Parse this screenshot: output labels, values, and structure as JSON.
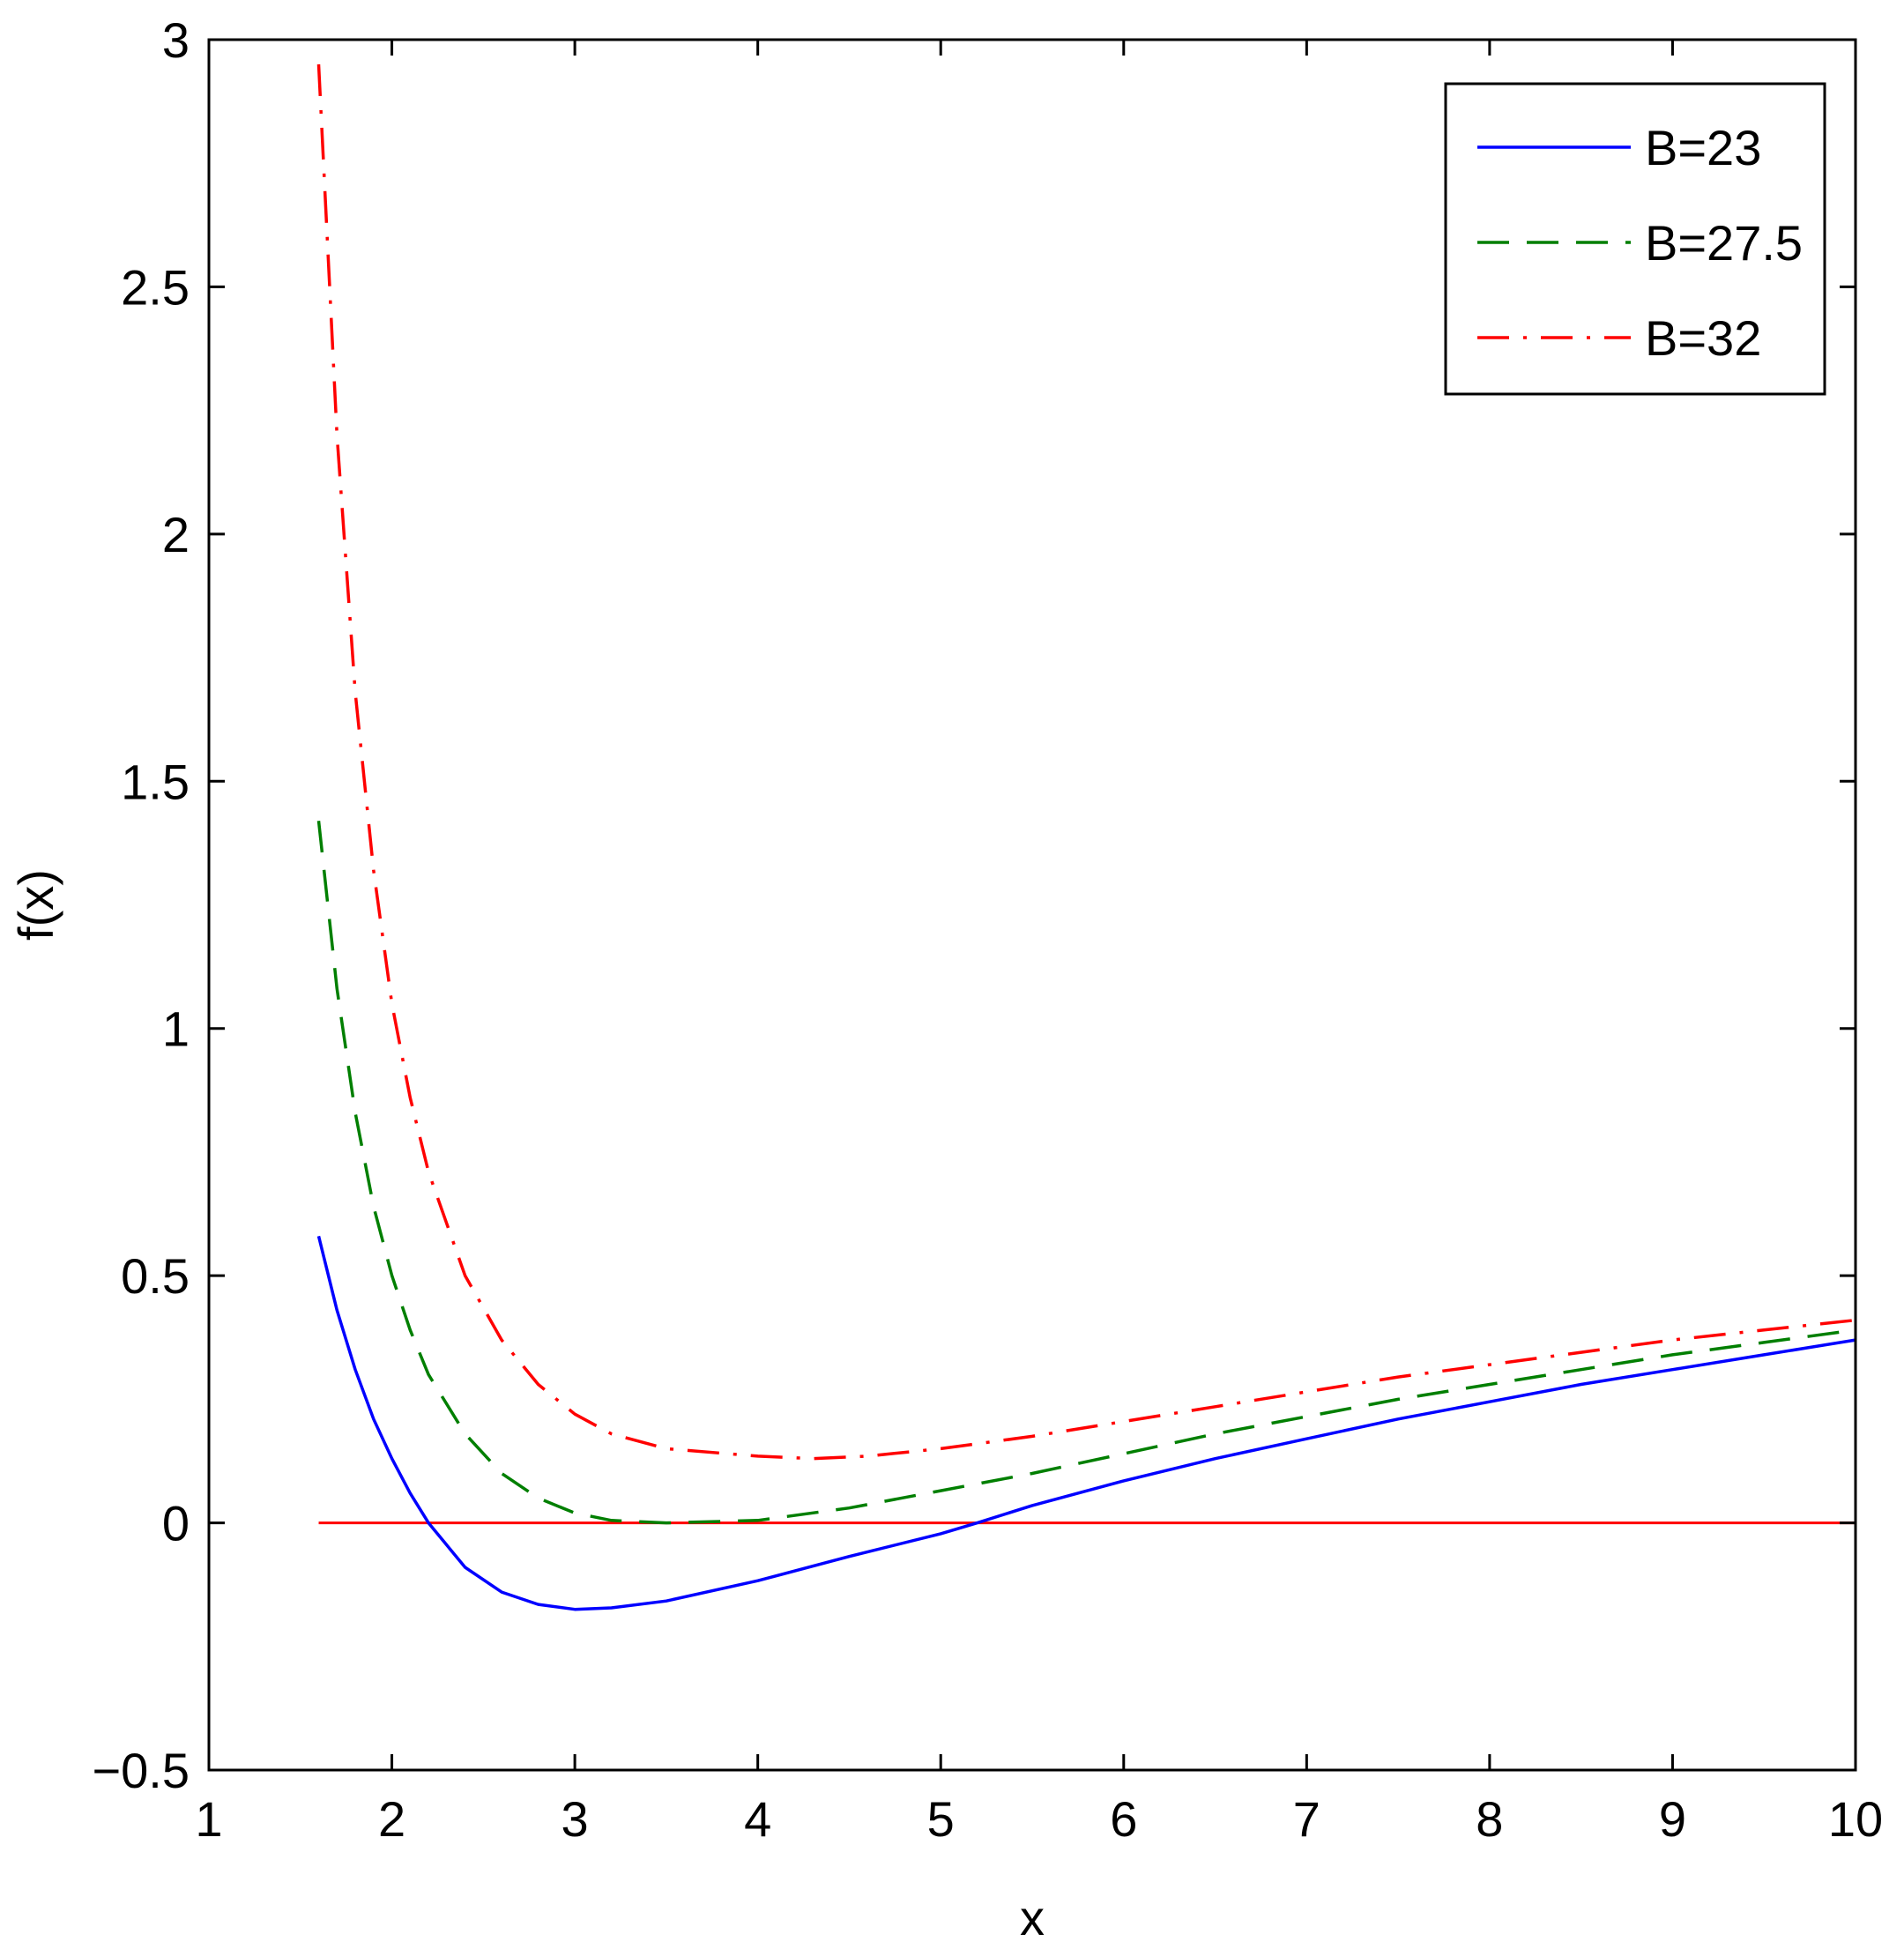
{
  "chart_data": {
    "type": "line",
    "xlabel": "x",
    "ylabel": "f(x)",
    "xlim": [
      1,
      10
    ],
    "ylim": [
      -0.5,
      3
    ],
    "xticks": [
      1,
      2,
      3,
      4,
      5,
      6,
      7,
      8,
      9,
      10
    ],
    "xtick_labels": [
      "1",
      "2",
      "3",
      "4",
      "5",
      "6",
      "7",
      "8",
      "9",
      "10"
    ],
    "yticks": [
      -0.5,
      0,
      0.5,
      1,
      1.5,
      2,
      2.5,
      3
    ],
    "ytick_labels": [
      "−0.5",
      "0",
      "0.5",
      "1",
      "1.5",
      "2",
      "2.5",
      "3"
    ],
    "grid": false,
    "legend_position": "top-right",
    "series": [
      {
        "name": "B=23",
        "color": "#0000ff",
        "style": "solid",
        "x": [
          1.6,
          1.7,
          1.8,
          1.9,
          2.0,
          2.1,
          2.2,
          2.4,
          2.6,
          2.8,
          3.0,
          3.2,
          3.5,
          4.0,
          4.5,
          5.0,
          5.2,
          5.5,
          6.0,
          6.5,
          7.0,
          7.5,
          8.0,
          8.5,
          9.0,
          9.5,
          10.0
        ],
        "y": [
          0.58,
          0.43,
          0.31,
          0.21,
          0.13,
          0.06,
          0.0,
          -0.09,
          -0.14,
          -0.165,
          -0.175,
          -0.172,
          -0.158,
          -0.117,
          -0.068,
          -0.022,
          0.0,
          0.035,
          0.085,
          0.13,
          0.17,
          0.21,
          0.245,
          0.28,
          0.31,
          0.34,
          0.37
        ]
      },
      {
        "name": "B=27.5",
        "color": "#007f00",
        "style": "dashed",
        "x": [
          1.6,
          1.7,
          1.8,
          1.9,
          2.0,
          2.1,
          2.2,
          2.4,
          2.6,
          2.8,
          3.0,
          3.2,
          3.5,
          4.0,
          4.5,
          5.0,
          5.5,
          6.0,
          6.5,
          7.0,
          7.5,
          8.0,
          8.5,
          9.0,
          9.5,
          10.0
        ],
        "y": [
          1.42,
          1.08,
          0.83,
          0.64,
          0.5,
          0.39,
          0.3,
          0.18,
          0.1,
          0.05,
          0.02,
          0.005,
          0.0,
          0.005,
          0.03,
          0.065,
          0.1,
          0.14,
          0.18,
          0.215,
          0.25,
          0.28,
          0.31,
          0.34,
          0.365,
          0.39
        ]
      },
      {
        "name": "B=32",
        "color": "#ff0000",
        "style": "dashdot",
        "x": [
          1.6,
          1.7,
          1.8,
          1.9,
          2.0,
          2.1,
          2.2,
          2.4,
          2.6,
          2.8,
          3.0,
          3.2,
          3.5,
          4.0,
          4.3,
          4.6,
          5.0,
          5.5,
          6.0,
          6.5,
          7.0,
          7.5,
          8.0,
          8.5,
          9.0,
          9.5,
          10.0
        ],
        "y": [
          2.95,
          2.2,
          1.68,
          1.32,
          1.05,
          0.86,
          0.71,
          0.5,
          0.37,
          0.28,
          0.22,
          0.18,
          0.15,
          0.135,
          0.13,
          0.135,
          0.15,
          0.175,
          0.205,
          0.235,
          0.265,
          0.295,
          0.32,
          0.345,
          0.37,
          0.39,
          0.41
        ]
      }
    ],
    "reference_line": {
      "color": "#ff0000",
      "style": "solid",
      "x": [
        1.6,
        10
      ],
      "y": [
        0,
        0
      ]
    }
  }
}
